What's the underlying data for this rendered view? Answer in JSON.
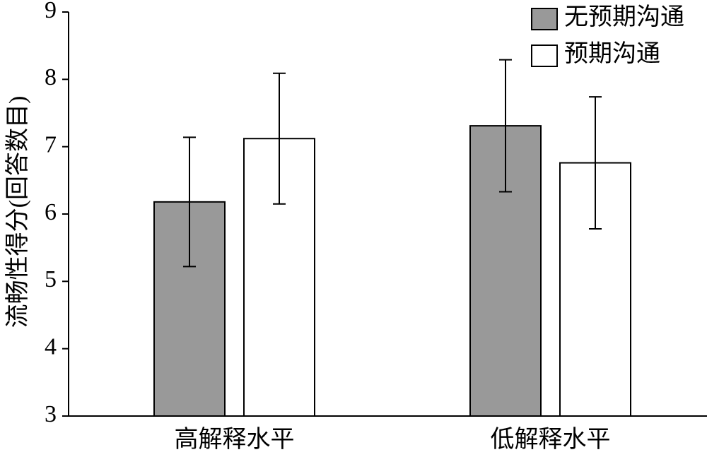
{
  "chart_data": {
    "type": "bar",
    "y_label": "流畅性得分(回答数目)",
    "categories": [
      "高解释水平",
      "低解释水平"
    ],
    "series": [
      {
        "name": "无预期沟通",
        "color": "#999999",
        "values": [
          6.18,
          7.31
        ],
        "errors": [
          0.96,
          0.98
        ]
      },
      {
        "name": "预期沟通",
        "color": "#ffffff",
        "values": [
          7.12,
          6.76
        ],
        "errors": [
          0.97,
          0.98
        ]
      }
    ],
    "ylim": [
      3,
      9
    ],
    "yticks": [
      3,
      4,
      5,
      6,
      7,
      8,
      9
    ],
    "grid": false,
    "legend": "upper right"
  }
}
